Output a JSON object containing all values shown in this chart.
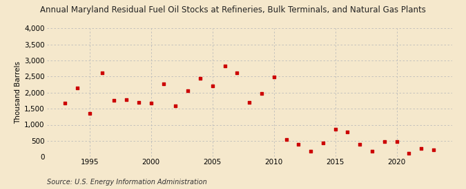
{
  "title": "Annual Maryland Residual Fuel Oil Stocks at Refineries, Bulk Terminals, and Natural Gas Plants",
  "ylabel": "Thousand Barrels",
  "source": "Source: U.S. Energy Information Administration",
  "background_color": "#f5e8cc",
  "plot_background_color": "#f5e8cc",
  "marker_color": "#cc0000",
  "years": [
    1993,
    1994,
    1995,
    1996,
    1997,
    1998,
    1999,
    2000,
    2001,
    2002,
    2003,
    2004,
    2005,
    2006,
    2007,
    2008,
    2009,
    2010,
    2011,
    2012,
    2013,
    2014,
    2015,
    2016,
    2017,
    2018,
    2019,
    2020,
    2021,
    2022,
    2023
  ],
  "values": [
    1680,
    2150,
    1360,
    2620,
    1760,
    1790,
    1690,
    1670,
    2270,
    1580,
    2060,
    2450,
    2200,
    2820,
    2620,
    1690,
    1970,
    2480,
    550,
    380,
    170,
    440,
    870,
    780,
    390,
    170,
    480,
    480,
    110,
    260,
    210
  ],
  "ylim": [
    0,
    4000
  ],
  "yticks": [
    0,
    500,
    1000,
    1500,
    2000,
    2500,
    3000,
    3500,
    4000
  ],
  "xlim": [
    1991.5,
    2024.5
  ],
  "xticks": [
    1995,
    2000,
    2005,
    2010,
    2015,
    2020
  ],
  "grid_color": "#bbbbbb",
  "title_fontsize": 8.5,
  "axis_fontsize": 7.5,
  "source_fontsize": 7
}
